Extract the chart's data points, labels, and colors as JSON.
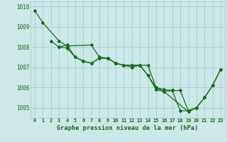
{
  "x": [
    0,
    1,
    2,
    3,
    4,
    5,
    6,
    7,
    8,
    9,
    10,
    11,
    12,
    13,
    14,
    15,
    16,
    17,
    18,
    19,
    20,
    21,
    22,
    23
  ],
  "line1_y": [
    1009.8,
    1009.2,
    null,
    1008.3,
    1008.05,
    null,
    null,
    1008.1,
    1007.5,
    1007.45,
    1007.2,
    1007.1,
    1007.0,
    1007.1,
    1006.6,
    1005.9,
    1005.8,
    null,
    null,
    1004.8,
    1005.0,
    1005.5,
    1006.1,
    1006.9
  ],
  "line2_y": [
    null,
    null,
    1008.3,
    1008.0,
    1008.1,
    1007.5,
    1007.3,
    1007.2,
    1007.45,
    1007.45,
    1007.2,
    1007.1,
    1007.1,
    1007.1,
    1007.1,
    1006.0,
    1005.9,
    1005.85,
    null,
    null,
    null,
    null,
    null,
    null
  ],
  "line3_y": [
    null,
    null,
    null,
    1008.0,
    1007.95,
    1007.5,
    1007.3,
    1007.2,
    1007.45,
    1007.45,
    1007.2,
    1007.1,
    1007.1,
    1007.1,
    1006.6,
    1006.0,
    1005.8,
    1005.85,
    1004.85,
    1004.85,
    1005.0,
    null,
    null,
    null
  ],
  "line4_y": [
    null,
    null,
    null,
    null,
    null,
    null,
    null,
    null,
    null,
    null,
    null,
    null,
    null,
    null,
    null,
    null,
    null,
    1005.85,
    1005.85,
    1004.85,
    1005.0,
    1005.5,
    1006.1,
    1006.9
  ],
  "ylim": [
    1004.5,
    1010.25
  ],
  "xlim": [
    -0.5,
    23.5
  ],
  "ytick_values": [
    1005,
    1006,
    1007,
    1008,
    1009,
    1010
  ],
  "xlabel": "Graphe pression niveau de la mer (hPa)",
  "line_color": "#1a6b1a",
  "bg_color": "#cce8e8",
  "grid_color": "#99cccc",
  "xtick_color": "#1a6b1a",
  "ytick_color": "#1a6b1a",
  "xlabel_color": "#1a6b1a",
  "xlabel_bg": "none"
}
